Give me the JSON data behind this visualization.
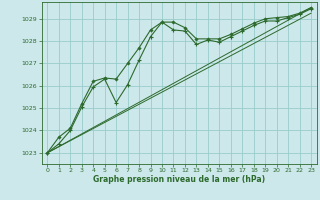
{
  "xlabel": "Graphe pression niveau de la mer (hPa)",
  "bg_color": "#cce8ea",
  "grid_color": "#99cccc",
  "line_color": "#2d6a2d",
  "ylim": [
    1022.5,
    1029.75
  ],
  "xlim": [
    -0.5,
    23.5
  ],
  "yticks": [
    1023,
    1024,
    1025,
    1026,
    1027,
    1028,
    1029
  ],
  "xticks": [
    0,
    1,
    2,
    3,
    4,
    5,
    6,
    7,
    8,
    9,
    10,
    11,
    12,
    13,
    14,
    15,
    16,
    17,
    18,
    19,
    20,
    21,
    22,
    23
  ],
  "series1_x": [
    0,
    1,
    2,
    3,
    4,
    5,
    6,
    7,
    8,
    9,
    10,
    11,
    12,
    13,
    14,
    15,
    16,
    17,
    18,
    19,
    20,
    21,
    22,
    23
  ],
  "series1_y": [
    1023.0,
    1023.7,
    1024.1,
    1025.2,
    1026.2,
    1026.35,
    1026.3,
    1027.0,
    1027.7,
    1028.5,
    1028.85,
    1028.85,
    1028.6,
    1028.1,
    1028.1,
    1028.1,
    1028.3,
    1028.55,
    1028.8,
    1029.0,
    1029.05,
    1029.1,
    1029.25,
    1029.5
  ],
  "series2_x": [
    0,
    1,
    2,
    3,
    4,
    5,
    6,
    7,
    8,
    9,
    10,
    11,
    12,
    13,
    14,
    15,
    16,
    17,
    18,
    19,
    20,
    21,
    22,
    23
  ],
  "series2_y": [
    1023.0,
    1023.4,
    1024.0,
    1025.05,
    1025.95,
    1026.3,
    1025.25,
    1026.05,
    1027.15,
    1028.2,
    1028.85,
    1028.5,
    1028.45,
    1027.85,
    1028.05,
    1027.95,
    1028.2,
    1028.45,
    1028.7,
    1028.9,
    1028.9,
    1029.05,
    1029.2,
    1029.45
  ],
  "series3_x": [
    0,
    23
  ],
  "series3_y": [
    1023.0,
    1029.5
  ],
  "series4_x": [
    0,
    23
  ],
  "series4_y": [
    1023.0,
    1029.25
  ]
}
